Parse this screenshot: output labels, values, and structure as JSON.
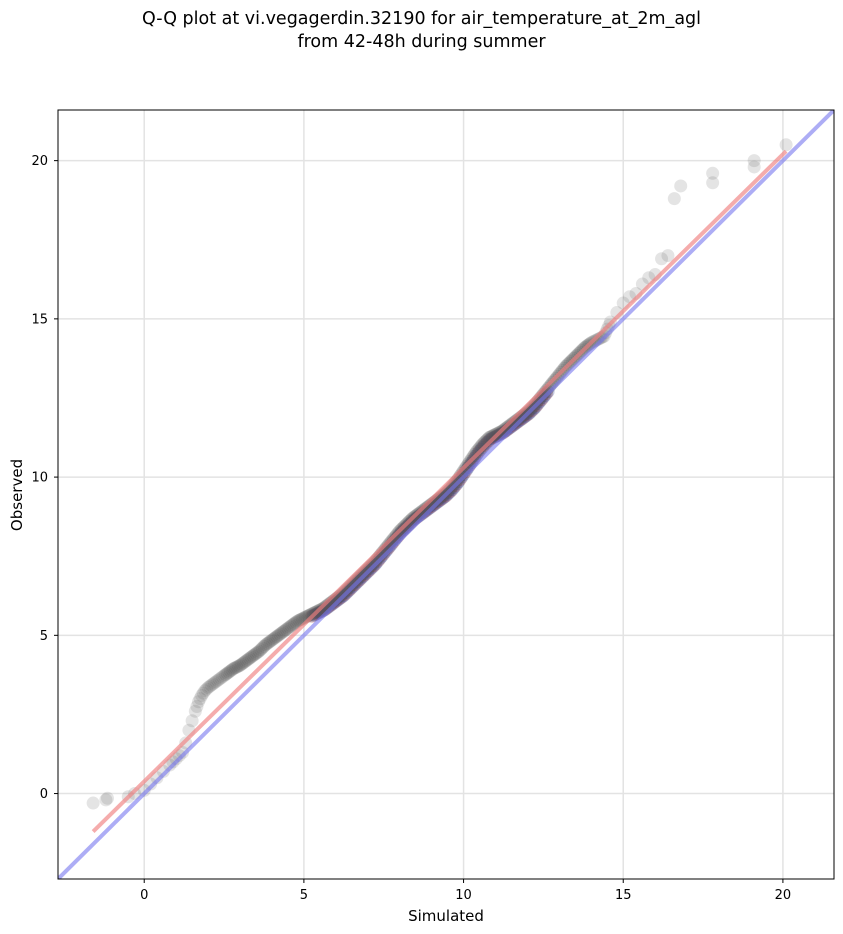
{
  "chart_data": {
    "type": "scatter",
    "title": "Q-Q plot at vi.vegagerdin.32190 for air_temperature_at_2m_agl\nfrom 42-48h during summer",
    "xlabel": "Simulated",
    "ylabel": "Observed",
    "xlim": [
      -2.7,
      21.6
    ],
    "ylim": [
      -2.7,
      21.6
    ],
    "xticks": [
      0,
      5,
      10,
      15,
      20
    ],
    "yticks": [
      0,
      5,
      10,
      15,
      20
    ],
    "xtick_labels": [
      "0",
      "5",
      "10",
      "15",
      "20"
    ],
    "ytick_labels": [
      "0",
      "5",
      "10",
      "15",
      "20"
    ],
    "grid": true,
    "colors": {
      "points": "#555555",
      "fit_line": "#f08080",
      "identity_line": "#7777ee",
      "highlight": "#1a2a80",
      "highlight_red": "#8b1a1a"
    },
    "series": [
      {
        "kind": "quantiles",
        "x": [
          -1.6,
          -1.2,
          -1.15,
          -0.5,
          -0.3,
          0.0,
          0.2,
          0.4,
          0.6,
          0.8,
          0.9,
          1.0,
          1.1,
          1.2,
          1.3,
          1.4,
          1.5,
          1.6,
          1.7,
          1.8,
          1.9,
          2.0,
          2.2,
          2.4,
          2.6,
          2.8,
          3.0,
          3.2,
          3.4,
          3.6,
          3.8,
          4.0,
          4.2,
          4.4,
          4.6,
          4.8,
          5.0,
          5.2,
          5.4,
          5.6,
          5.8,
          6.0,
          6.2,
          6.4,
          6.6,
          6.8,
          7.0,
          7.2,
          7.4,
          7.6,
          7.8,
          8.0,
          8.2,
          8.4,
          8.6,
          8.8,
          9.0,
          9.2,
          9.4,
          9.6,
          9.8,
          10.0,
          10.2,
          10.4,
          10.6,
          10.8,
          11.0,
          11.2,
          11.4,
          11.6,
          11.8,
          12.0,
          12.2,
          12.4,
          12.6,
          12.8,
          13.0,
          13.2,
          13.4,
          13.6,
          13.8,
          14.0,
          14.2,
          14.4,
          14.6,
          14.8,
          15.0,
          15.2,
          15.4,
          15.6,
          15.8,
          16.0,
          16.2,
          16.4,
          16.6,
          16.8,
          17.8,
          17.8,
          19.1,
          19.1,
          20.1
        ],
        "y": [
          -0.3,
          -0.2,
          -0.15,
          -0.1,
          0.0,
          0.1,
          0.3,
          0.5,
          0.7,
          0.9,
          1.0,
          1.1,
          1.2,
          1.3,
          1.6,
          2.0,
          2.3,
          2.6,
          2.9,
          3.1,
          3.25,
          3.35,
          3.5,
          3.65,
          3.8,
          3.95,
          4.05,
          4.2,
          4.35,
          4.5,
          4.7,
          4.85,
          5.0,
          5.15,
          5.3,
          5.45,
          5.55,
          5.65,
          5.75,
          5.85,
          6.0,
          6.15,
          6.3,
          6.5,
          6.7,
          6.9,
          7.1,
          7.3,
          7.55,
          7.8,
          8.05,
          8.3,
          8.5,
          8.7,
          8.85,
          9.0,
          9.15,
          9.3,
          9.45,
          9.65,
          9.9,
          10.2,
          10.5,
          10.8,
          11.05,
          11.25,
          11.35,
          11.45,
          11.6,
          11.75,
          11.9,
          12.05,
          12.25,
          12.5,
          12.75,
          13.0,
          13.25,
          13.5,
          13.7,
          13.9,
          14.1,
          14.25,
          14.35,
          14.45,
          14.9,
          15.2,
          15.5,
          15.7,
          15.8,
          16.1,
          16.3,
          16.4,
          16.9,
          17.0,
          18.8,
          19.2,
          19.3,
          19.6,
          19.8,
          20.0,
          20.5
        ]
      },
      {
        "kind": "fit_line",
        "x": [
          -1.6,
          20.1
        ],
        "y": [
          -1.2,
          20.3
        ]
      },
      {
        "kind": "identity_line",
        "x": [
          -2.7,
          21.6
        ],
        "y": [
          -2.7,
          21.6
        ]
      }
    ]
  }
}
